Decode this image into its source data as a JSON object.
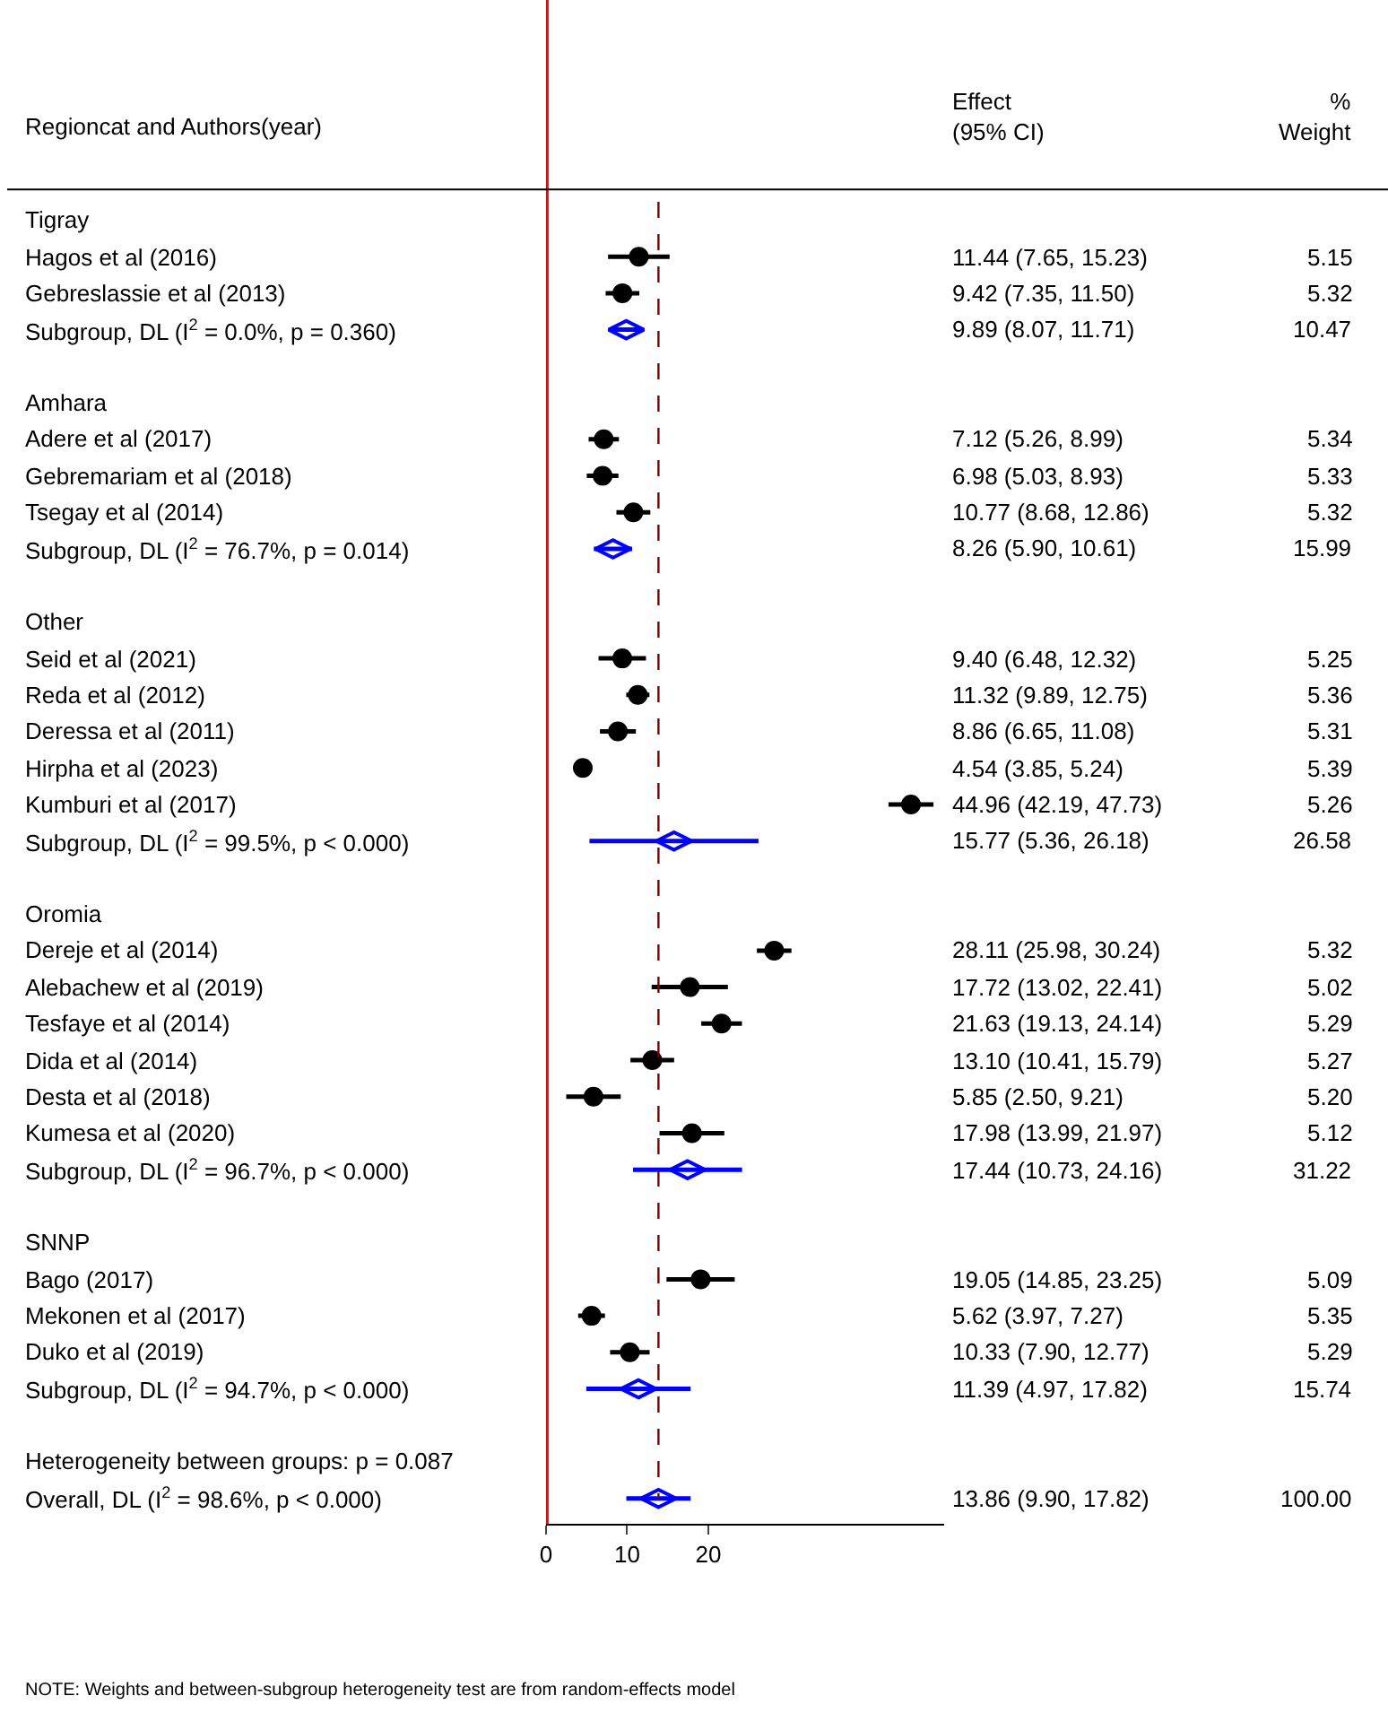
{
  "chart_data": {
    "type": "scatter",
    "orientation": "horizontal",
    "categories": [
      "Tigray",
      "Hagos et al (2016)",
      "Gebreslassie et al (2013)",
      "Subgroup, DL (I$^{2}$ = 0.0%, p = 0.360)",
      null,
      "Amhara",
      "Adere et al (2017)",
      "Gebremariam et al (2018)",
      "Tsegay et al (2014)",
      "Subgroup, DL (I$^{2}$ = 76.7%, p = 0.014)",
      null,
      "Other",
      "Seid et al (2021)",
      "Reda et al (2012)",
      "Deressa et al (2011)",
      "Hirpha et al (2023)",
      "Kumburi et al (2017)",
      "Subgroup, DL (I$^{2}$ = 99.5%, p < 0.000)",
      null,
      "Oromia",
      "Dereje et al (2014)",
      "Alebachew et al (2019)",
      "Tesfaye et al (2014)",
      "Dida et al (2014)",
      "Desta et al (2018)",
      "Kumesa et al (2020)",
      "Subgroup, DL (I$^{2}$ = 96.7%, p < 0.000)",
      null,
      "SNNP",
      "Bago (2017)",
      "Mekonen et al (2017)",
      "Duko et al (2019)",
      "Subgroup, DL (I$^{2}$ = 94.7%, p < 0.000)",
      null,
      "Heterogeneity between groups: p = 0.087",
      "Overall, DL (I$^{2}$ = 98.6%, p < 0.000)"
    ],
    "series": [
      {
        "marker": "circle",
        "color": "#000000",
        "values": [
          null,
          11.44,
          9.42,
          null,
          null,
          null,
          7.12,
          6.98,
          10.77,
          null,
          null,
          null,
          9.4,
          11.32,
          8.86,
          4.54,
          44.96,
          null,
          null,
          null,
          28.11,
          17.72,
          21.63,
          13.1,
          5.85,
          17.98,
          null,
          null,
          null,
          19.05,
          5.62,
          10.33,
          null,
          null,
          null,
          null
        ],
        "errors": [
          null,
          [
            7.65,
            15.23
          ],
          [
            7.35,
            11.5
          ],
          null,
          null,
          null,
          [
            5.26,
            8.99
          ],
          [
            5.03,
            8.93
          ],
          [
            8.68,
            12.86
          ],
          null,
          null,
          null,
          [
            6.48,
            12.32
          ],
          [
            9.89,
            12.75
          ],
          [
            6.65,
            11.08
          ],
          [
            3.85,
            5.24
          ],
          [
            42.19,
            47.73
          ],
          null,
          null,
          null,
          [
            25.98,
            30.24
          ],
          [
            13.02,
            22.41
          ],
          [
            19.13,
            24.14
          ],
          [
            10.41,
            15.79
          ],
          [
            2.5,
            9.21
          ],
          [
            13.99,
            21.97
          ],
          null,
          null,
          null,
          [
            14.85,
            23.25
          ],
          [
            3.97,
            7.27
          ],
          [
            7.9,
            12.77
          ],
          null,
          null,
          null,
          null
        ],
        "value_labels": [
          null,
          "11.44 (7.65, 15.23) 5.15",
          "9.42 (7.35, 11.50) 5.32",
          null,
          null,
          null,
          "7.12 (5.26, 8.99) 5.34",
          "6.98 (5.03, 8.93) 5.33",
          "10.77 (8.68, 12.86) 5.32",
          null,
          null,
          null,
          "9.40 (6.48, 12.32) 5.25",
          "11.32 (9.89, 12.75) 5.36",
          "8.86 (6.65, 11.08) 5.31",
          "4.54 (3.85, 5.24) 5.39",
          "44.96 (42.19, 47.73) 5.26",
          null,
          null,
          null,
          "28.11 (25.98, 30.24) 5.32",
          "17.72 (13.02, 22.41) 5.02",
          "21.63 (19.13, 24.14) 5.29",
          "13.10 (10.41, 15.79) 5.27",
          "5.85 (2.50, 9.21) 5.20",
          "17.98 (13.99, 21.97) 5.12",
          null,
          null,
          null,
          "19.05 (14.85, 23.25) 5.09",
          "5.62 (3.97, 7.27) 5.35",
          "10.33 (7.90, 12.77) 5.29",
          null,
          null,
          null,
          null
        ]
      },
      {
        "marker": "diamond",
        "color": "#0000ff",
        "values": [
          null,
          null,
          null,
          9.89,
          null,
          null,
          null,
          null,
          null,
          8.26,
          null,
          null,
          null,
          null,
          null,
          null,
          null,
          15.77,
          null,
          null,
          null,
          null,
          null,
          null,
          null,
          null,
          17.44,
          null,
          null,
          null,
          null,
          null,
          11.39,
          null,
          null,
          13.86
        ],
        "errors": [
          null,
          null,
          null,
          [
            8.07,
            11.71
          ],
          null,
          null,
          null,
          null,
          null,
          [
            5.9,
            10.61
          ],
          null,
          null,
          null,
          null,
          null,
          null,
          null,
          [
            5.36,
            26.18
          ],
          null,
          null,
          null,
          null,
          null,
          null,
          null,
          null,
          [
            10.73,
            24.16
          ],
          null,
          null,
          null,
          null,
          null,
          [
            4.97,
            17.82
          ],
          null,
          null,
          [
            9.9,
            17.82
          ]
        ],
        "value_labels": [
          null,
          null,
          null,
          "9.89 (8.07, 11.71) 10.47",
          null,
          null,
          null,
          null,
          null,
          "8.26 (5.90, 10.61) 15.99",
          null,
          null,
          null,
          null,
          null,
          null,
          null,
          "15.77 (5.36, 26.18) 26.58",
          null,
          null,
          null,
          null,
          null,
          null,
          null,
          null,
          "17.44 (10.73, 24.16) 31.22",
          null,
          null,
          null,
          null,
          null,
          "11.39 (4.97, 17.82) 15.74",
          null,
          null,
          "13.86 (9.90, 17.82) 100.00"
        ]
      }
    ],
    "xlim": [
      0,
      49
    ],
    "xticks": [
      0,
      10,
      20
    ],
    "tick_labels": "x",
    "ref_lines": [
      {
        "axis": "x",
        "value": 0,
        "color": "#ff0000",
        "line_style": "solid"
      },
      {
        "axis": "x",
        "value": 13.86,
        "color": "#800000",
        "line_style": "dashed"
      }
    ],
    "annotations": [
      "Regioncat and Authors(year)",
      "Effect\n(95% CI)",
      "%\nWeight",
      "NOTE: Weights and between-subgroup heterogeneity test are from random-effects model"
    ]
  }
}
